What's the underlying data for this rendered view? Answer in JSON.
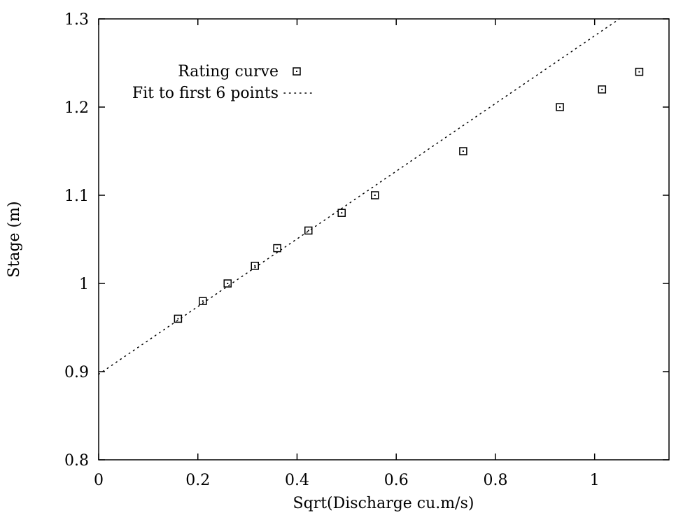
{
  "chart_data": {
    "type": "scatter",
    "xlabel": "Sqrt(Discharge cu.m/s)",
    "ylabel": "Stage (m)",
    "xlim": [
      0,
      1.15
    ],
    "ylim": [
      0.8,
      1.3
    ],
    "xticks": [
      0,
      0.2,
      0.4,
      0.6,
      0.8,
      1
    ],
    "xtick_labels": [
      "0",
      "0.2",
      "0.4",
      "0.6",
      "0.8",
      "1"
    ],
    "yticks": [
      0.8,
      0.9,
      1.0,
      1.1,
      1.2,
      1.3
    ],
    "ytick_labels": [
      "0.8",
      "0.9",
      "1",
      "1.1",
      "1.2",
      "1.3"
    ],
    "grid": false,
    "legend_position": "top-left",
    "series": [
      {
        "name": "Rating curve",
        "style": "square-markers",
        "x": [
          0.16,
          0.21,
          0.26,
          0.315,
          0.36,
          0.423,
          0.49,
          0.557,
          0.735,
          0.93,
          1.015,
          1.09
        ],
        "y": [
          0.96,
          0.98,
          1.0,
          1.02,
          1.04,
          1.06,
          1.08,
          1.1,
          1.15,
          1.2,
          1.22,
          1.24
        ]
      },
      {
        "name": "Fit to first 6 points",
        "style": "dotted-line",
        "x": [
          0,
          1.05
        ],
        "y": [
          0.897,
          1.3
        ]
      }
    ]
  }
}
